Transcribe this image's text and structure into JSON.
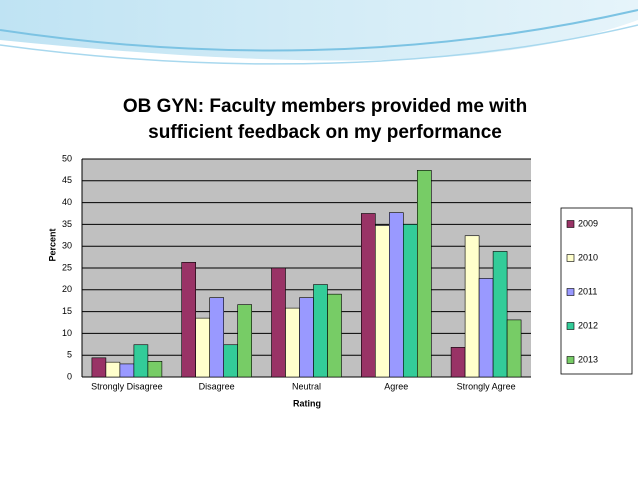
{
  "chart_data": {
    "type": "bar",
    "title": "OB GYN: Faculty members provided me with sufficient feedback on my performance",
    "x_label": "Rating",
    "y_label": "Percent",
    "categories": [
      "Strongly Disagree",
      "Disagree",
      "Neutral",
      "Agree",
      "Strongly Agree"
    ],
    "series": [
      {
        "name": "2009",
        "color": "#993366",
        "values": [
          4.4,
          26.3,
          25,
          37.5,
          6.8
        ]
      },
      {
        "name": "2010",
        "color": "#ffffcc",
        "values": [
          3.4,
          13.5,
          15.8,
          34.7,
          32.4
        ]
      },
      {
        "name": "2011",
        "color": "#9999ff",
        "values": [
          3.0,
          18.2,
          18.2,
          37.7,
          22.6
        ]
      },
      {
        "name": "2012",
        "color": "#33cc99",
        "values": [
          7.4,
          7.4,
          21.2,
          35,
          28.8
        ]
      },
      {
        "name": "2013",
        "color": "#77cc66",
        "values": [
          3.6,
          16.6,
          19,
          47.4,
          13.1
        ]
      }
    ],
    "ylim": [
      0,
      50
    ],
    "yticks": [
      0,
      5,
      10,
      15,
      20,
      25,
      30,
      35,
      40,
      45,
      50
    ],
    "grid": true,
    "legend": "right"
  }
}
